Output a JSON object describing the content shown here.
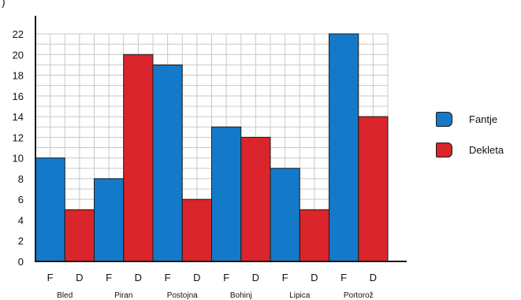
{
  "corner_label": ")",
  "chart_data": {
    "type": "bar",
    "groups": [
      "Bled",
      "Piran",
      "Postojna",
      "Bohinj",
      "Lipica",
      "Portorož"
    ],
    "bar_labels": [
      "F",
      "D"
    ],
    "series": [
      {
        "name": "Fantje",
        "color": "#1479c9",
        "values": [
          10,
          8,
          19,
          13,
          9,
          22
        ]
      },
      {
        "name": "Dekleta",
        "color": "#d9252b",
        "values": [
          5,
          20,
          6,
          12,
          5,
          14
        ]
      }
    ],
    "yticks": [
      "0",
      "2",
      "4",
      "6",
      "8",
      "10",
      "12",
      "14",
      "16",
      "18",
      "20",
      "22"
    ],
    "ylim": [
      0,
      22
    ],
    "grid": true,
    "legend_position": "right"
  }
}
